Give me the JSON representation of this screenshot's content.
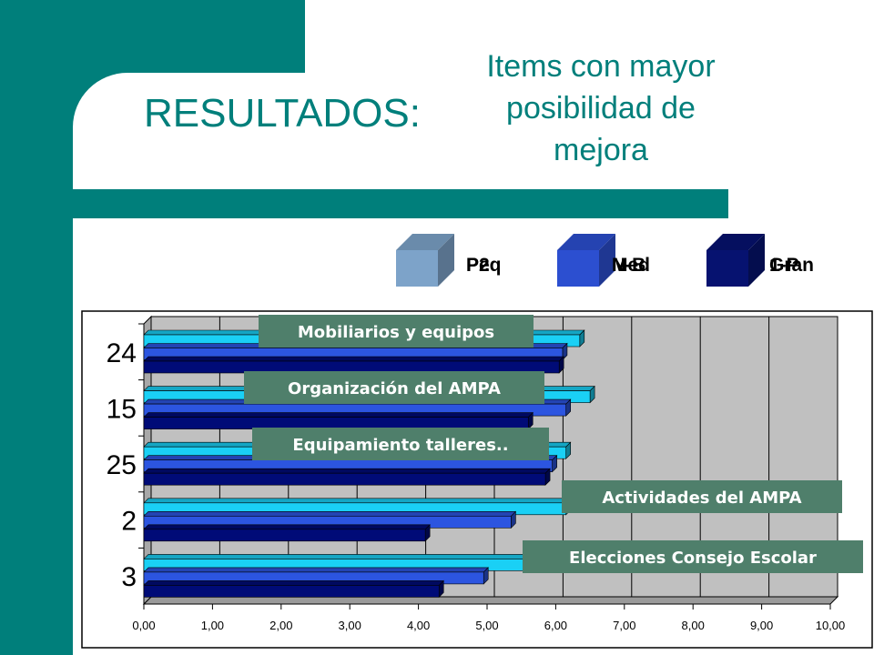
{
  "slide": {
    "heading": "RESULTADOS:",
    "subtitle_lines": [
      "Items con mayor",
      "posibilidad de",
      "mejora"
    ]
  },
  "chart_data": {
    "type": "bar",
    "orientation": "horizontal",
    "categories": [
      "24",
      "15",
      "25",
      "2",
      "3"
    ],
    "category_labels": [
      "Mobiliarios y equipos",
      "Organización del AMPA",
      "Equipamiento talleres..",
      "Actividades del AMPA",
      "Elecciones Consejo Escolar"
    ],
    "series": [
      {
        "name": "P2",
        "values": [
          6.35,
          6.5,
          6.15,
          6.15,
          5.85
        ],
        "color": "#1ad0f5"
      },
      {
        "name": "N-B",
        "values": [
          6.1,
          6.15,
          5.95,
          5.35,
          4.95
        ],
        "color": "#2c55e0"
      },
      {
        "name": "1-P",
        "values": [
          6.05,
          5.6,
          5.85,
          4.1,
          4.3
        ],
        "color": "#000b77"
      }
    ],
    "legend": {
      "placement": "top-right",
      "overlapping_labels": [
        {
          "texts": [
            "Peq",
            "P2"
          ],
          "color": "#7da3c9"
        },
        {
          "texts": [
            "Med",
            "N-B"
          ],
          "color": "#2c4fd0"
        },
        {
          "texts": [
            "Gran",
            "1-P"
          ],
          "color": "#061270"
        }
      ]
    },
    "xlim": [
      0,
      10
    ],
    "x_ticks": [
      "0,00",
      "1,00",
      "2,00",
      "3,00",
      "4,00",
      "5,00",
      "6,00",
      "7,00",
      "8,00",
      "9,00",
      "10,00"
    ],
    "grid": true,
    "label_box_color": "#4f7f6b",
    "wall_color": "#c0c0c0"
  }
}
